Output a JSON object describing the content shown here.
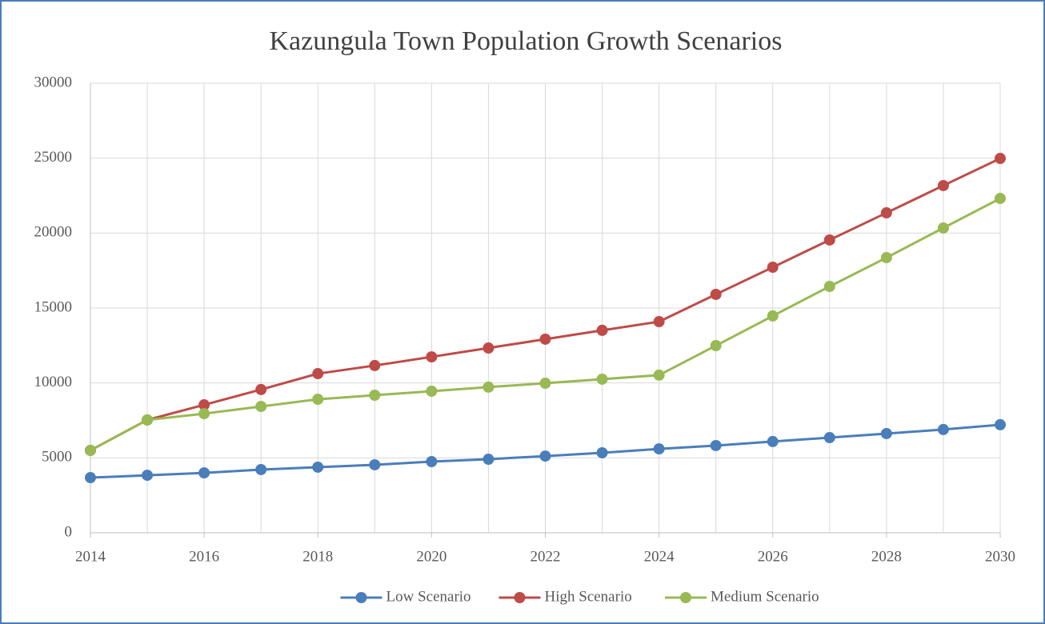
{
  "chart_data": {
    "type": "line",
    "title": "Kazungula Town Population Growth Scenarios",
    "x": [
      2014,
      2015,
      2016,
      2017,
      2018,
      2019,
      2020,
      2021,
      2022,
      2023,
      2024,
      2025,
      2026,
      2027,
      2028,
      2029,
      2030
    ],
    "series": [
      {
        "name": "Low Scenario",
        "color": "#4a7ebb",
        "values": [
          3680,
          3840,
          4000,
          4220,
          4380,
          4540,
          4750,
          4910,
          5120,
          5340,
          5600,
          5820,
          6090,
          6350,
          6620,
          6890,
          7210
        ]
      },
      {
        "name": "High Scenario",
        "color": "#be4b48",
        "values": [
          5500,
          7530,
          8540,
          9560,
          10620,
          11160,
          11740,
          12330,
          12920,
          13510,
          14090,
          15910,
          17720,
          19540,
          21350,
          23170,
          24980
        ]
      },
      {
        "name": "Medium Scenario",
        "color": "#98b954",
        "values": [
          5500,
          7530,
          7950,
          8430,
          8910,
          9180,
          9450,
          9720,
          9980,
          10250,
          10520,
          12490,
          14470,
          16440,
          18360,
          20340,
          22310
        ]
      }
    ],
    "xlim": [
      2014,
      2030
    ],
    "xticks": [
      2014,
      2016,
      2018,
      2020,
      2022,
      2024,
      2026,
      2028,
      2030
    ],
    "ylim": [
      0,
      30000
    ],
    "yticks": [
      0,
      5000,
      10000,
      15000,
      20000,
      25000,
      30000
    ],
    "grid": true,
    "legend": "bottom"
  }
}
